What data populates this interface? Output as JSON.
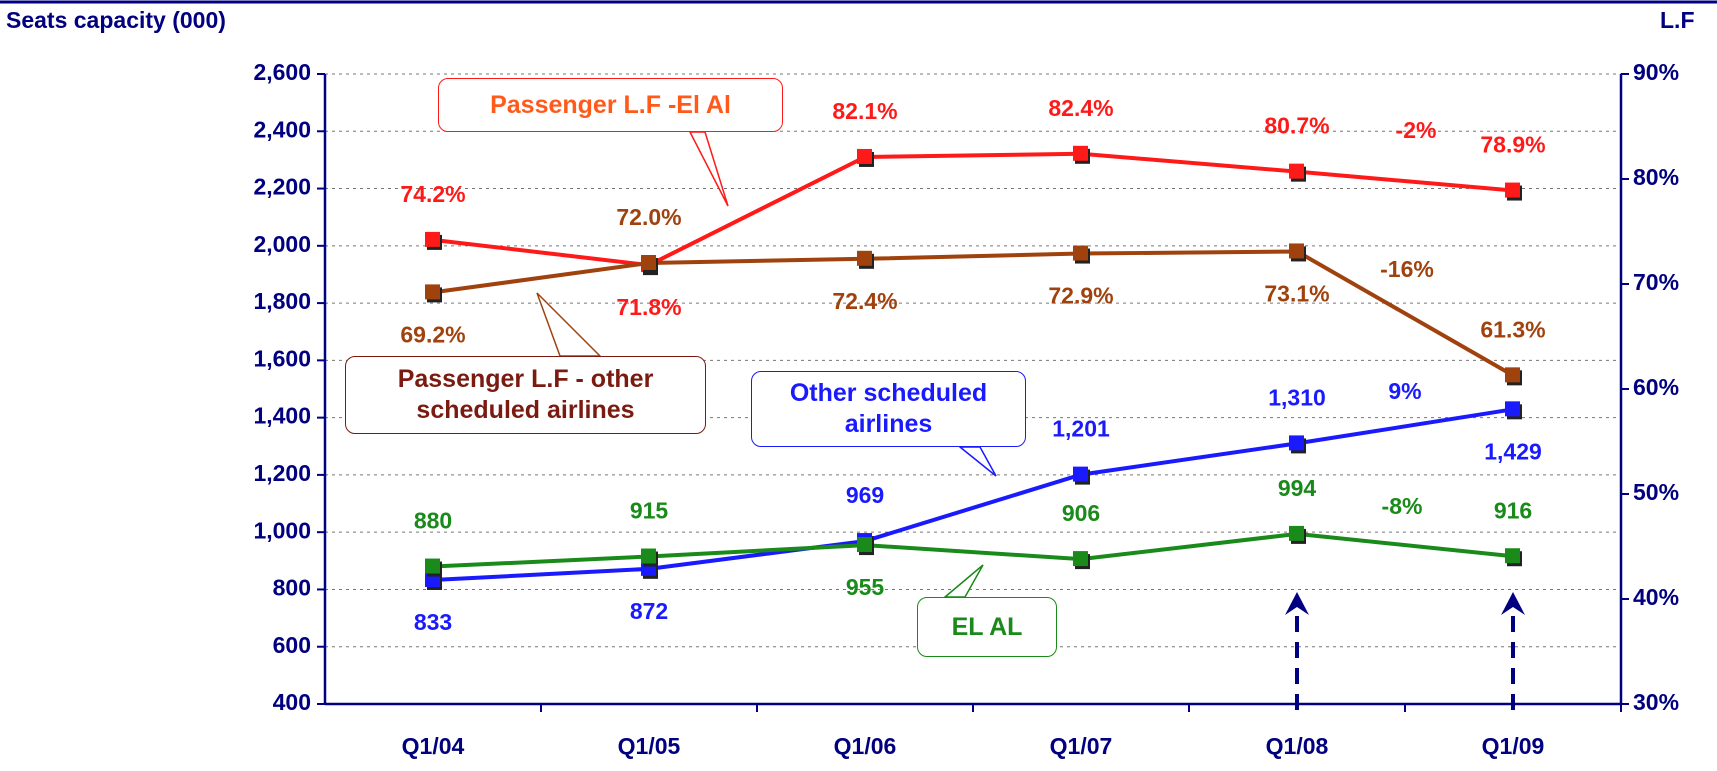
{
  "chart_data": {
    "type": "line",
    "y_label": "Seats capacity (000)",
    "y2_label": "L.F",
    "categories": [
      "Q1/04",
      "Q1/05",
      "Q1/06",
      "Q1/07",
      "Q1/08",
      "Q1/09"
    ],
    "ylim": [
      400,
      2600
    ],
    "yticks": [
      {
        "value": 400,
        "label": "400"
      },
      {
        "value": 600,
        "label": "600"
      },
      {
        "value": 800,
        "label": "800"
      },
      {
        "value": 1000,
        "label": "1,000"
      },
      {
        "value": 1200,
        "label": "1,200"
      },
      {
        "value": 1400,
        "label": "1,400"
      },
      {
        "value": 1600,
        "label": "1,600"
      },
      {
        "value": 1800,
        "label": "1,800"
      },
      {
        "value": 2000,
        "label": "2,000"
      },
      {
        "value": 2200,
        "label": "2,200"
      },
      {
        "value": 2400,
        "label": "2,400"
      },
      {
        "value": 2600,
        "label": "2,600"
      }
    ],
    "y2lim": [
      30,
      90
    ],
    "y2ticks": [
      {
        "value": 30,
        "label": "30%"
      },
      {
        "value": 40,
        "label": "40%"
      },
      {
        "value": 50,
        "label": "50%"
      },
      {
        "value": 60,
        "label": "60%"
      },
      {
        "value": 70,
        "label": "70%"
      },
      {
        "value": 80,
        "label": "80%"
      },
      {
        "value": 90,
        "label": "90%"
      }
    ],
    "grid": true,
    "series": [
      {
        "name": "Passenger L.F  -El Al",
        "color": "#ff1a1a",
        "axis": "y2",
        "values": [
          74.2,
          71.8,
          82.1,
          82.4,
          80.7,
          78.9
        ],
        "value_labels": [
          "74.2%",
          "71.8%",
          "82.1%",
          "82.4%",
          "80.7%",
          "78.9%"
        ]
      },
      {
        "name": "Passenger L.F - other scheduled airlines",
        "color": "#a0420e",
        "axis": "y2",
        "values": [
          69.2,
          72.0,
          72.4,
          72.9,
          73.1,
          61.3
        ],
        "value_labels": [
          "69.2%",
          "72.0%",
          "72.4%",
          "72.9%",
          "73.1%",
          "61.3%"
        ]
      },
      {
        "name": "Other scheduled airlines",
        "color": "#1a1aff",
        "values": [
          833,
          872,
          969,
          1201,
          1310,
          1429
        ],
        "value_labels": [
          "833",
          "872",
          "969",
          "1,201",
          "1,310",
          "1,429"
        ]
      },
      {
        "name": "EL AL",
        "color": "#1a8a1a",
        "values": [
          880,
          915,
          955,
          906,
          994,
          916
        ]
      }
    ],
    "annotations": [
      "-2%",
      "-16%",
      "9%",
      "-8%"
    ]
  }
}
